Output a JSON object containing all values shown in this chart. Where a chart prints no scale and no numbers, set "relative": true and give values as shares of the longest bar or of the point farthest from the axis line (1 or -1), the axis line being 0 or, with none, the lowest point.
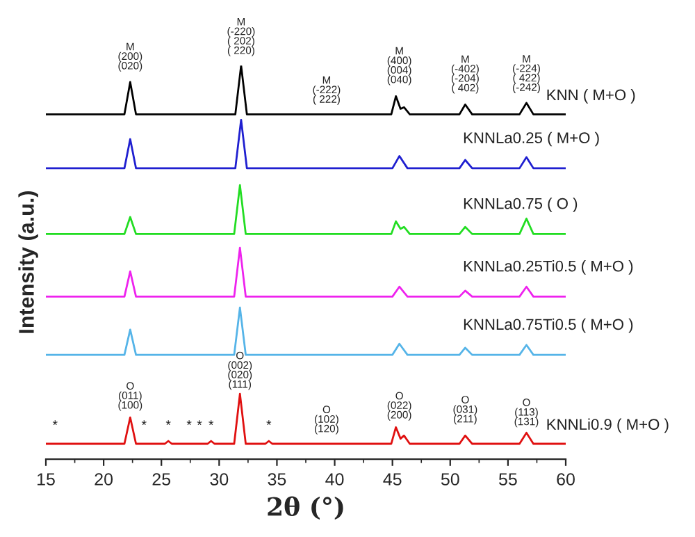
{
  "chart_data": {
    "type": "line",
    "relative": true,
    "xlabel": "2θ (°)",
    "ylabel": "Intensity (a.u.)",
    "xlim": [
      15,
      60
    ],
    "xticks": [
      15,
      20,
      25,
      30,
      35,
      40,
      45,
      50,
      55,
      60
    ],
    "grid": false,
    "legend": false,
    "marker": "none",
    "line_style": "solid",
    "series": [
      {
        "name": "KNN ( M+O )",
        "color": "#000000",
        "x": [
          15,
          21.8,
          22.3,
          22.8,
          31.4,
          31.9,
          32.4,
          44.9,
          45.3,
          45.7,
          46.0,
          46.5,
          50.8,
          51.3,
          51.9,
          56.0,
          56.6,
          57.2,
          60
        ],
        "values": [
          0.876,
          0.876,
          0.958,
          0.876,
          0.876,
          1.0,
          0.876,
          0.876,
          0.922,
          0.89,
          0.894,
          0.876,
          0.876,
          0.901,
          0.876,
          0.876,
          0.905,
          0.876,
          0.876
        ]
      },
      {
        "name": "KNNLa0.25 ( M+O )",
        "color": "#1f1fd0",
        "x": [
          15,
          21.8,
          22.3,
          22.8,
          31.4,
          31.9,
          32.4,
          45.0,
          45.6,
          46.3,
          50.8,
          51.3,
          51.9,
          56.0,
          56.6,
          57.2,
          60
        ],
        "values": [
          0.739,
          0.739,
          0.813,
          0.739,
          0.739,
          0.862,
          0.739,
          0.739,
          0.77,
          0.739,
          0.739,
          0.76,
          0.739,
          0.739,
          0.767,
          0.739,
          0.739
        ]
      },
      {
        "name": "KNNLa0.75 ( O )",
        "color": "#22dd22",
        "x": [
          15,
          21.8,
          22.3,
          22.8,
          31.3,
          31.8,
          32.3,
          44.9,
          45.3,
          45.7,
          46.0,
          46.5,
          50.8,
          51.3,
          51.9,
          56.0,
          56.6,
          57.2,
          60
        ],
        "values": [
          0.572,
          0.572,
          0.615,
          0.572,
          0.572,
          0.696,
          0.572,
          0.572,
          0.604,
          0.585,
          0.59,
          0.572,
          0.572,
          0.59,
          0.572,
          0.572,
          0.611,
          0.572,
          0.572
        ]
      },
      {
        "name": "KNNLa0.25Ti0.5 ( M+O )",
        "color": "#ee22ee",
        "x": [
          15,
          21.8,
          22.3,
          22.8,
          31.3,
          31.8,
          32.3,
          45.0,
          45.6,
          46.3,
          50.8,
          51.3,
          51.9,
          56.0,
          56.6,
          57.2,
          60
        ],
        "values": [
          0.413,
          0.413,
          0.477,
          0.413,
          0.413,
          0.537,
          0.413,
          0.413,
          0.438,
          0.413,
          0.413,
          0.428,
          0.413,
          0.413,
          0.438,
          0.413,
          0.413
        ]
      },
      {
        "name": "KNNLa0.75Ti0.5 ( M+O )",
        "color": "#55b4e8",
        "x": [
          15,
          21.8,
          22.3,
          22.8,
          31.3,
          31.8,
          32.3,
          45.0,
          45.6,
          46.3,
          50.8,
          51.3,
          51.9,
          56.0,
          56.6,
          57.2,
          60
        ],
        "values": [
          0.265,
          0.265,
          0.329,
          0.265,
          0.265,
          0.385,
          0.265,
          0.265,
          0.293,
          0.265,
          0.265,
          0.283,
          0.265,
          0.265,
          0.29,
          0.265,
          0.265
        ]
      },
      {
        "name": "KNNLi0.9 ( M+O )",
        "color": "#e01010",
        "x": [
          15,
          21.8,
          22.3,
          22.8,
          25.3,
          25.6,
          25.9,
          29.0,
          29.3,
          29.6,
          31.3,
          31.8,
          32.3,
          34.0,
          34.3,
          34.6,
          44.9,
          45.3,
          45.7,
          46.0,
          46.5,
          50.8,
          51.3,
          51.9,
          56.0,
          56.6,
          57.2,
          60
        ],
        "values": [
          0.039,
          0.039,
          0.106,
          0.039,
          0.039,
          0.046,
          0.039,
          0.039,
          0.046,
          0.039,
          0.039,
          0.166,
          0.039,
          0.039,
          0.046,
          0.039,
          0.039,
          0.081,
          0.052,
          0.06,
          0.039,
          0.039,
          0.06,
          0.039,
          0.039,
          0.067,
          0.039,
          0.039
        ]
      }
    ],
    "annotations": [
      {
        "text": "M\n(200)\n(020)",
        "x": 22.3,
        "y": 0.975
      },
      {
        "text": "M\n(-220)\n( 202)\n( 220)",
        "x": 31.9,
        "y": 1.014
      },
      {
        "text": "M\n(-222)\n( 222)",
        "x": 39.3,
        "y": 0.89
      },
      {
        "text": "M\n(400)\n(004)\n(040)",
        "x": 45.6,
        "y": 0.94
      },
      {
        "text": "M\n(-402)\n(-204)\n( 402)",
        "x": 51.3,
        "y": 0.919
      },
      {
        "text": "M\n(-224)\n( 422)\n(-242)",
        "x": 56.6,
        "y": 0.92
      },
      {
        "text": "O\n(011)\n(100)",
        "x": 22.3,
        "y": 0.113
      },
      {
        "text": "O\n(002)\n(020)\n(111)",
        "x": 31.8,
        "y": 0.166
      },
      {
        "text": "O\n(102)\n(120)",
        "x": 39.3,
        "y": 0.053
      },
      {
        "text": "O\n(022)\n(200)",
        "x": 45.6,
        "y": 0.088
      },
      {
        "text": "O\n(031)\n(211)",
        "x": 51.3,
        "y": 0.078
      },
      {
        "text": "O\n(113)\n(131)",
        "x": 56.6,
        "y": 0.071
      },
      {
        "text": "*",
        "x": 15.8,
        "y": 0.058
      },
      {
        "text": "*",
        "x": 23.5,
        "y": 0.058
      },
      {
        "text": "*",
        "x": 25.6,
        "y": 0.058
      },
      {
        "text": "*",
        "x": 27.4,
        "y": 0.058
      },
      {
        "text": "*",
        "x": 28.3,
        "y": 0.058
      },
      {
        "text": "*",
        "x": 29.3,
        "y": 0.058
      },
      {
        "text": "*",
        "x": 34.3,
        "y": 0.058
      }
    ]
  }
}
